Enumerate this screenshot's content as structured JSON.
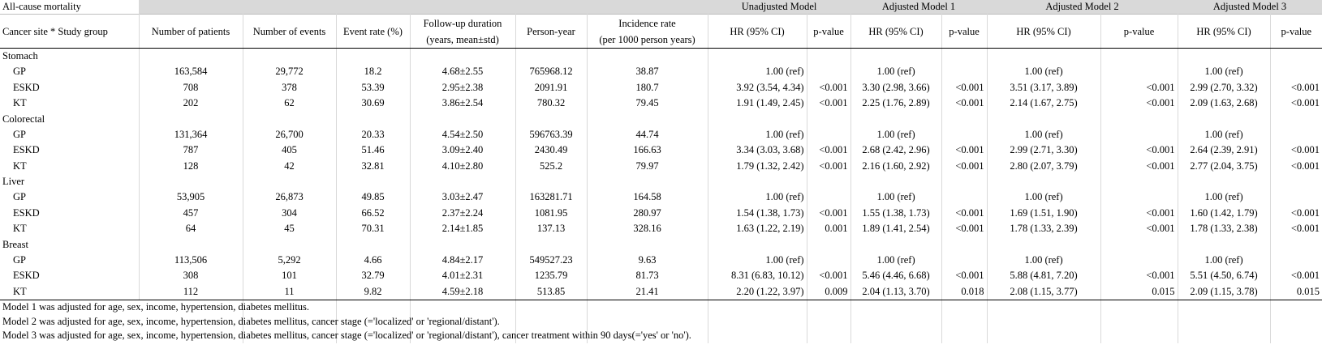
{
  "title": "All-cause mortality",
  "model_groups": [
    "Unadjusted  Model",
    "Adjusted Model 1",
    "Adjusted Model 2",
    "Adjusted Model 3"
  ],
  "columns": [
    "Cancer site * Study group",
    "Number of patients",
    "Number of events",
    "Event rate (%)",
    "Follow-up duration|(years, mean±std)",
    "Person-year",
    "Incidence rate|(per 1000 person years)",
    "HR (95% CI)",
    "p-value",
    "HR (95% CI)",
    "p-value",
    "HR (95% CI)",
    "p-value",
    "HR (95% CI)",
    "p-value"
  ],
  "sites": [
    {
      "name": "Stomach",
      "rows": [
        [
          "GP",
          "163,584",
          "29,772",
          "18.2",
          "4.68±2.55",
          "765968.12",
          "38.87",
          "1.00 (ref)",
          "",
          "1.00 (ref)",
          "",
          "1.00 (ref)",
          "",
          "1.00 (ref)",
          ""
        ],
        [
          "ESKD",
          "708",
          "378",
          "53.39",
          "2.95±2.38",
          "2091.91",
          "180.7",
          "3.92 (3.54, 4.34)",
          "<0.001",
          "3.30 (2.98, 3.66)",
          "<0.001",
          "3.51 (3.17, 3.89)",
          "<0.001",
          "2.99 (2.70, 3.32)",
          "<0.001"
        ],
        [
          "KT",
          "202",
          "62",
          "30.69",
          "3.86±2.54",
          "780.32",
          "79.45",
          "1.91 (1.49, 2.45)",
          "<0.001",
          "2.25 (1.76, 2.89)",
          "<0.001",
          "2.14 (1.67, 2.75)",
          "<0.001",
          "2.09 (1.63, 2.68)",
          "<0.001"
        ]
      ]
    },
    {
      "name": "Colorectal",
      "rows": [
        [
          "GP",
          "131,364",
          "26,700",
          "20.33",
          "4.54±2.50",
          "596763.39",
          "44.74",
          "1.00 (ref)",
          "",
          "1.00 (ref)",
          "",
          "1.00 (ref)",
          "",
          "1.00 (ref)",
          ""
        ],
        [
          "ESKD",
          "787",
          "405",
          "51.46",
          "3.09±2.40",
          "2430.49",
          "166.63",
          "3.34 (3.03, 3.68)",
          "<0.001",
          "2.68 (2.42, 2.96)",
          "<0.001",
          "2.99 (2.71, 3.30)",
          "<0.001",
          "2.64 (2.39, 2.91)",
          "<0.001"
        ],
        [
          "KT",
          "128",
          "42",
          "32.81",
          "4.10±2.80",
          "525.2",
          "79.97",
          "1.79 (1.32, 2.42)",
          "<0.001",
          "2.16 (1.60, 2.92)",
          "<0.001",
          "2.80 (2.07, 3.79)",
          "<0.001",
          "2.77 (2.04, 3.75)",
          "<0.001"
        ]
      ]
    },
    {
      "name": "Liver",
      "rows": [
        [
          "GP",
          "53,905",
          "26,873",
          "49.85",
          "3.03±2.47",
          "163281.71",
          "164.58",
          "1.00 (ref)",
          "",
          "1.00 (ref)",
          "",
          "1.00 (ref)",
          "",
          "1.00 (ref)",
          ""
        ],
        [
          "ESKD",
          "457",
          "304",
          "66.52",
          "2.37±2.24",
          "1081.95",
          "280.97",
          "1.54 (1.38, 1.73)",
          "<0.001",
          "1.55 (1.38, 1.73)",
          "<0.001",
          "1.69 (1.51, 1.90)",
          "<0.001",
          "1.60 (1.42, 1.79)",
          "<0.001"
        ],
        [
          "KT",
          "64",
          "45",
          "70.31",
          "2.14±1.85",
          "137.13",
          "328.16",
          "1.63 (1.22, 2.19)",
          "0.001",
          "1.89 (1.41, 2.54)",
          "<0.001",
          "1.78 (1.33, 2.39)",
          "<0.001",
          "1.78 (1.33, 2.38)",
          "<0.001"
        ]
      ]
    },
    {
      "name": "Breast",
      "rows": [
        [
          "GP",
          "113,506",
          "5,292",
          "4.66",
          "4.84±2.17",
          "549527.23",
          "9.63",
          "1.00 (ref)",
          "",
          "1.00 (ref)",
          "",
          "1.00 (ref)",
          "",
          "1.00 (ref)",
          ""
        ],
        [
          "ESKD",
          "308",
          "101",
          "32.79",
          "4.01±2.31",
          "1235.79",
          "81.73",
          "8.31 (6.83, 10.12)",
          "<0.001",
          "5.46 (4.46, 6.68)",
          "<0.001",
          "5.88 (4.81, 7.20)",
          "<0.001",
          "5.51 (4.50, 6.74)",
          "<0.001"
        ],
        [
          "KT",
          "112",
          "11",
          "9.82",
          "4.59±2.18",
          "513.85",
          "21.41",
          "2.20 (1.22, 3.97)",
          "0.009",
          "2.04 (1.13, 3.70)",
          "0.018",
          "2.08 (1.15, 3.77)",
          "0.015",
          "2.09 (1.15, 3.78)",
          "0.015"
        ]
      ]
    }
  ],
  "notes": [
    "Model 1 was adjusted for age, sex, income, hypertension, diabetes mellitus.",
    "Model 2 was adjusted for age, sex, income, hypertension, diabetes mellitus, cancer stage (='localized' or 'regional/distant').",
    "Model 3 was adjusted for age, sex, income, hypertension, diabetes mellitus, cancer stage (='localized' or 'regional/distant'), cancer treatment within 90 days(='yes' or 'no')."
  ]
}
